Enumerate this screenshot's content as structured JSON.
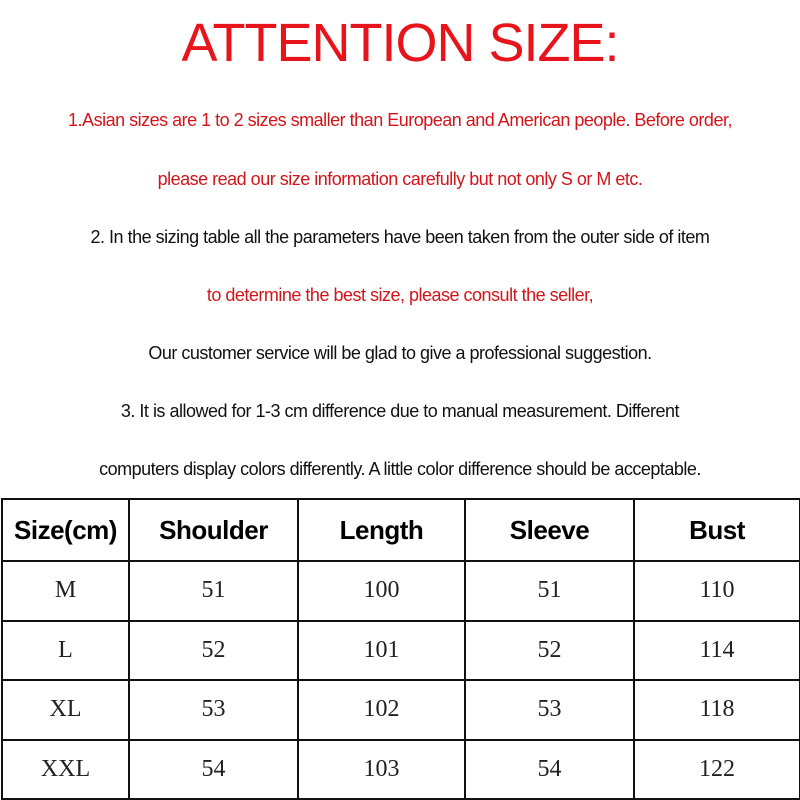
{
  "title": "ATTENTION SIZE:",
  "lines": [
    {
      "text": "1.Asian sizes are 1 to 2 sizes smaller than European and American people. Before order,",
      "color": "red"
    },
    {
      "text": "please read our size information carefully but not only S or M etc.",
      "color": "red"
    },
    {
      "text": "2. In the sizing table all the parameters have been taken from the outer side of item",
      "color": "black"
    },
    {
      "text": "to determine the best size, please consult the seller,",
      "color": "red"
    },
    {
      "text": "Our customer service will be glad to give a professional suggestion.",
      "color": "black"
    },
    {
      "text": "3. It is allowed for 1-3 cm difference due to manual measurement. Different",
      "color": "black"
    },
    {
      "text": "computers display colors differently. A little color difference should be acceptable.",
      "color": "black"
    }
  ],
  "table": {
    "headers": [
      "Size(cm)",
      "Shoulder",
      "Length",
      "Sleeve",
      "Bust"
    ],
    "rows": [
      [
        "M",
        "51",
        "100",
        "51",
        "110"
      ],
      [
        "L",
        "52",
        "101",
        "52",
        "114"
      ],
      [
        "XL",
        "53",
        "102",
        "53",
        "118"
      ],
      [
        "XXL",
        "54",
        "103",
        "54",
        "122"
      ]
    ]
  },
  "colors": {
    "red": "#d4141a",
    "black": "#111111"
  }
}
